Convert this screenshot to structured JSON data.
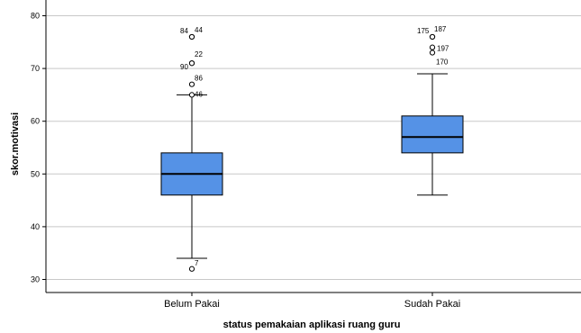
{
  "chart_data": {
    "type": "boxplot",
    "title": "",
    "xlabel": "status pemakaian aplikasi ruang guru",
    "ylabel": "skor.motivasi",
    "ylim": [
      28,
      81
    ],
    "yticks": [
      30,
      40,
      50,
      60,
      70,
      80
    ],
    "grid": true,
    "box_color": "#5592e6",
    "categories": [
      "Belum Pakai",
      "Sudah Pakai"
    ],
    "boxes": [
      {
        "category": "Belum Pakai",
        "whisker_low": 34,
        "q1": 46,
        "median": 50,
        "q3": 54,
        "whisker_high": 65,
        "outliers": [
          {
            "label": "84",
            "value": 76
          },
          {
            "label": "44",
            "value": 76
          },
          {
            "label": "22",
            "value": 71
          },
          {
            "label": "90",
            "value": 71
          },
          {
            "label": "86",
            "value": 67
          },
          {
            "label": "46",
            "value": 65
          },
          {
            "label": "7",
            "value": 32
          }
        ]
      },
      {
        "category": "Sudah Pakai",
        "whisker_low": 46,
        "q1": 54,
        "median": 57,
        "q3": 61,
        "whisker_high": 69,
        "outliers": [
          {
            "label": "175",
            "value": 76
          },
          {
            "label": "187",
            "value": 76
          },
          {
            "label": "197",
            "value": 74
          },
          {
            "label": "170",
            "value": 73
          }
        ]
      }
    ]
  }
}
